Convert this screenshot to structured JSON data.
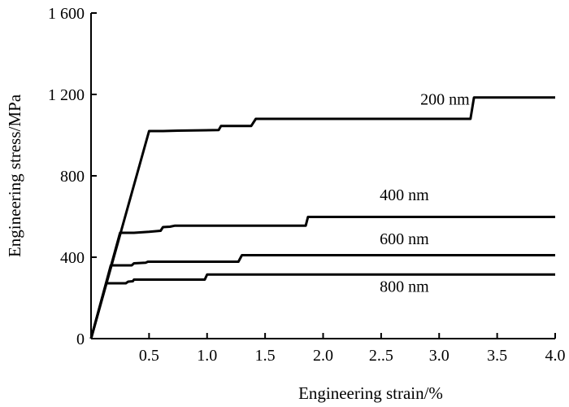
{
  "chart_data": {
    "type": "line",
    "xlabel": "Engineering strain/%",
    "ylabel": "Engineering stress/MPa",
    "xlim": [
      0,
      4.0
    ],
    "ylim": [
      0,
      1600
    ],
    "x_ticks": [
      {
        "value": 0.5,
        "label": "0.5"
      },
      {
        "value": 1.0,
        "label": "1.0"
      },
      {
        "value": 1.5,
        "label": "1.5"
      },
      {
        "value": 2.0,
        "label": "2.0"
      },
      {
        "value": 2.5,
        "label": "2..5"
      },
      {
        "value": 3.0,
        "label": "3.0"
      },
      {
        "value": 3.5,
        "label": "3.5"
      },
      {
        "value": 4.0,
        "label": "4.0"
      }
    ],
    "y_ticks": [
      {
        "value": 0,
        "label": "0"
      },
      {
        "value": 400,
        "label": "400"
      },
      {
        "value": 800,
        "label": "800"
      },
      {
        "value": 1200,
        "label": "1 200"
      },
      {
        "value": 1600,
        "label": "1 600"
      }
    ],
    "grid": false,
    "series": [
      {
        "name": "200 nm",
        "points": [
          [
            0,
            0
          ],
          [
            0.5,
            1020
          ],
          [
            0.62,
            1020
          ],
          [
            0.75,
            1022
          ],
          [
            1.1,
            1025
          ],
          [
            1.12,
            1045
          ],
          [
            1.38,
            1045
          ],
          [
            1.42,
            1080
          ],
          [
            3.27,
            1080
          ],
          [
            3.3,
            1185
          ],
          [
            4.0,
            1185
          ]
        ]
      },
      {
        "name": "400 nm",
        "points": [
          [
            0,
            0
          ],
          [
            0.25,
            520
          ],
          [
            0.37,
            520
          ],
          [
            0.5,
            525
          ],
          [
            0.6,
            530
          ],
          [
            0.62,
            548
          ],
          [
            0.68,
            550
          ],
          [
            0.72,
            555
          ],
          [
            1.85,
            555
          ],
          [
            1.87,
            598
          ],
          [
            4.0,
            598
          ]
        ]
      },
      {
        "name": "600 nm",
        "points": [
          [
            0,
            0
          ],
          [
            0.17,
            360
          ],
          [
            0.35,
            360
          ],
          [
            0.37,
            370
          ],
          [
            0.47,
            373
          ],
          [
            0.49,
            378
          ],
          [
            1.27,
            378
          ],
          [
            1.3,
            410
          ],
          [
            4.0,
            410
          ]
        ]
      },
      {
        "name": "800 nm",
        "points": [
          [
            0,
            0
          ],
          [
            0.13,
            272
          ],
          [
            0.3,
            272
          ],
          [
            0.32,
            280
          ],
          [
            0.36,
            282
          ],
          [
            0.37,
            290
          ],
          [
            0.98,
            290
          ],
          [
            1.0,
            315
          ],
          [
            4.0,
            315
          ]
        ]
      }
    ],
    "series_labels": [
      {
        "name": "200 nm",
        "x": 3.05,
        "y": 1150
      },
      {
        "name": "400 nm",
        "x": 2.7,
        "y": 680
      },
      {
        "name": "600 nm",
        "x": 2.7,
        "y": 465
      },
      {
        "name": "800 nm",
        "x": 2.7,
        "y": 230
      }
    ]
  }
}
